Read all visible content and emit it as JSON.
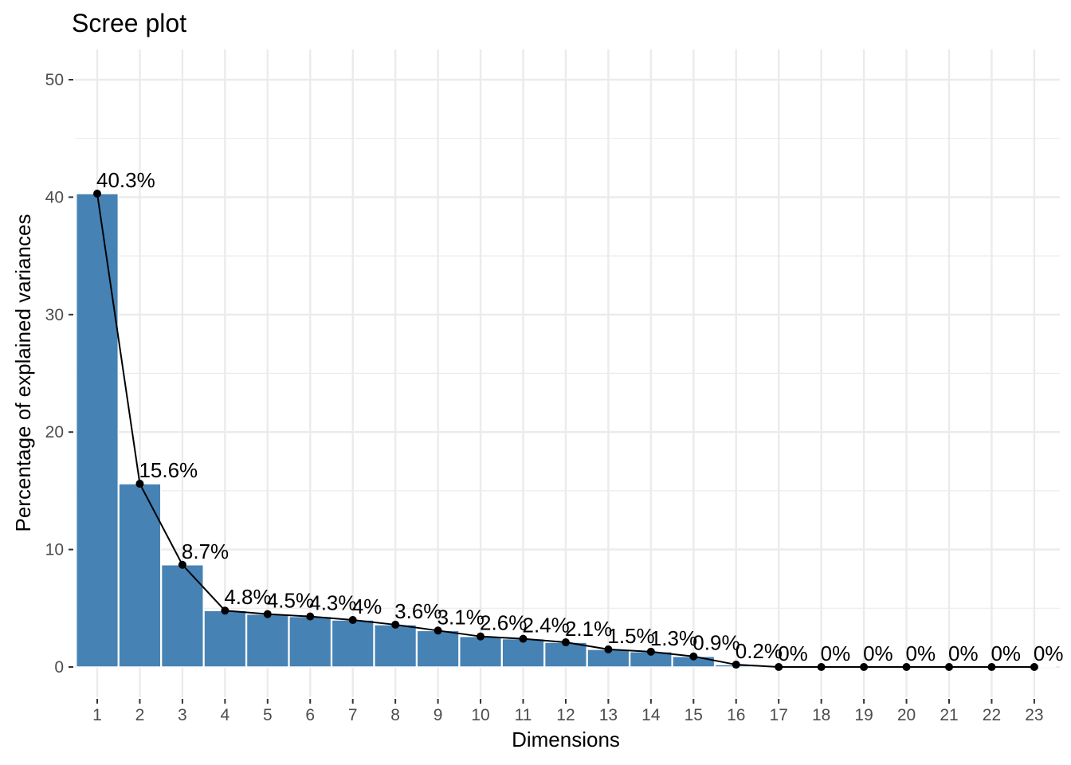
{
  "chart_data": {
    "type": "bar",
    "title": "Scree plot",
    "xlabel": "Dimensions",
    "ylabel": "Percentage of explained variances",
    "categories": [
      "1",
      "2",
      "3",
      "4",
      "5",
      "6",
      "7",
      "8",
      "9",
      "10",
      "11",
      "12",
      "13",
      "14",
      "15",
      "16",
      "17",
      "18",
      "19",
      "20",
      "21",
      "22",
      "23"
    ],
    "values": [
      40.3,
      15.6,
      8.7,
      4.8,
      4.5,
      4.3,
      4.0,
      3.6,
      3.1,
      2.6,
      2.4,
      2.1,
      1.5,
      1.3,
      0.9,
      0.2,
      0.0,
      0.0,
      0.0,
      0.0,
      0.0,
      0.0,
      0.0
    ],
    "data_labels": [
      "40.3%",
      "15.6%",
      "8.7%",
      "4.8%",
      "4.5%",
      "4.3%",
      "4%",
      "3.6%",
      "3.1%",
      "2.6%",
      "2.4%",
      "2.1%",
      "1.5%",
      "1.3%",
      "0.9%",
      "0.2%",
      "0%",
      "0%",
      "0%",
      "0%",
      "0%",
      "0%",
      "0%"
    ],
    "ylim": [
      0,
      50
    ],
    "yticks": [
      0,
      10,
      20,
      30,
      40,
      50
    ],
    "grid": true,
    "legend": "none",
    "bar_color": "#4682b4",
    "line_color": "#000000",
    "grid_color": "#ebebeb"
  }
}
